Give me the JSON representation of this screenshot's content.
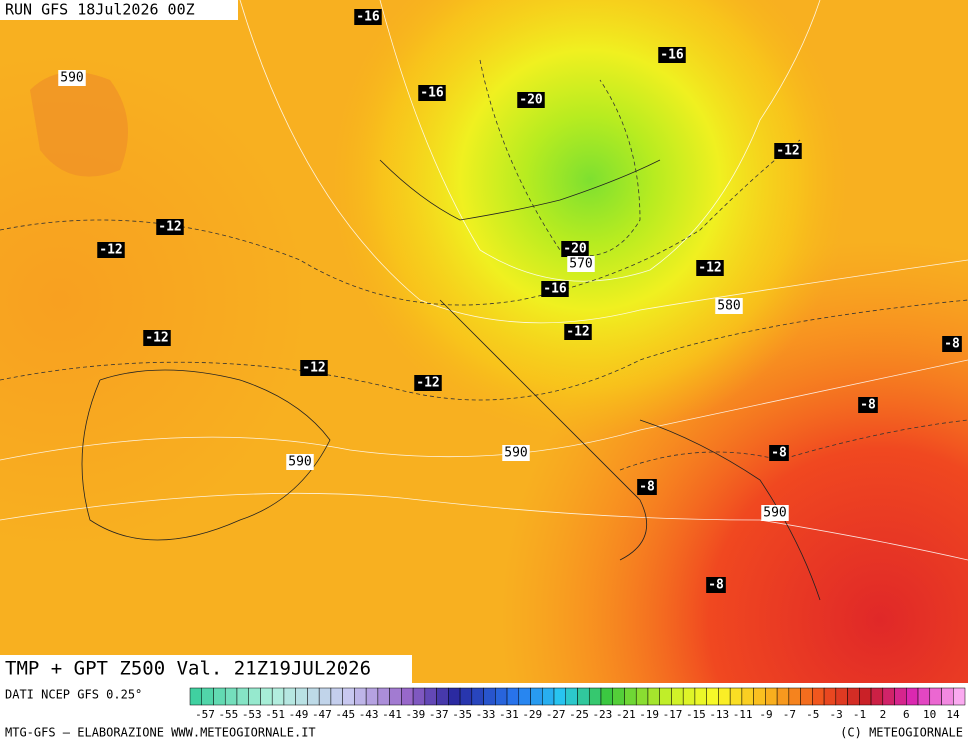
{
  "header": {
    "run": "RUN GFS 18Jul2026 00Z"
  },
  "title": "TMP + GPT Z500 Val. 21Z19JUL2026",
  "footer": {
    "source": "DATI NCEP GFS 0.25°",
    "credit": "MTG-GFS — ELABORAZIONE WWW.METEOGIORNALE.IT",
    "copyright": "(C) METEOGIORNALE"
  },
  "colorbar": {
    "labels": [
      -57,
      -55,
      -53,
      -51,
      -49,
      -47,
      -45,
      -43,
      -41,
      -39,
      -37,
      -35,
      -33,
      -31,
      -29,
      -27,
      -25,
      -23,
      -21,
      -19,
      -17,
      -15,
      -13,
      -11,
      -9,
      -7,
      -5,
      -3,
      -1,
      2,
      6,
      10,
      14
    ]
  },
  "temperature_labels": [
    -16,
    -16,
    -16,
    -20,
    -12,
    -12,
    -12,
    -20,
    -16,
    -12,
    -12,
    -12,
    -12,
    -12,
    -8,
    -8,
    -8,
    -8,
    -8
  ],
  "height_labels": [
    590,
    570,
    580,
    590,
    590,
    590
  ]
}
